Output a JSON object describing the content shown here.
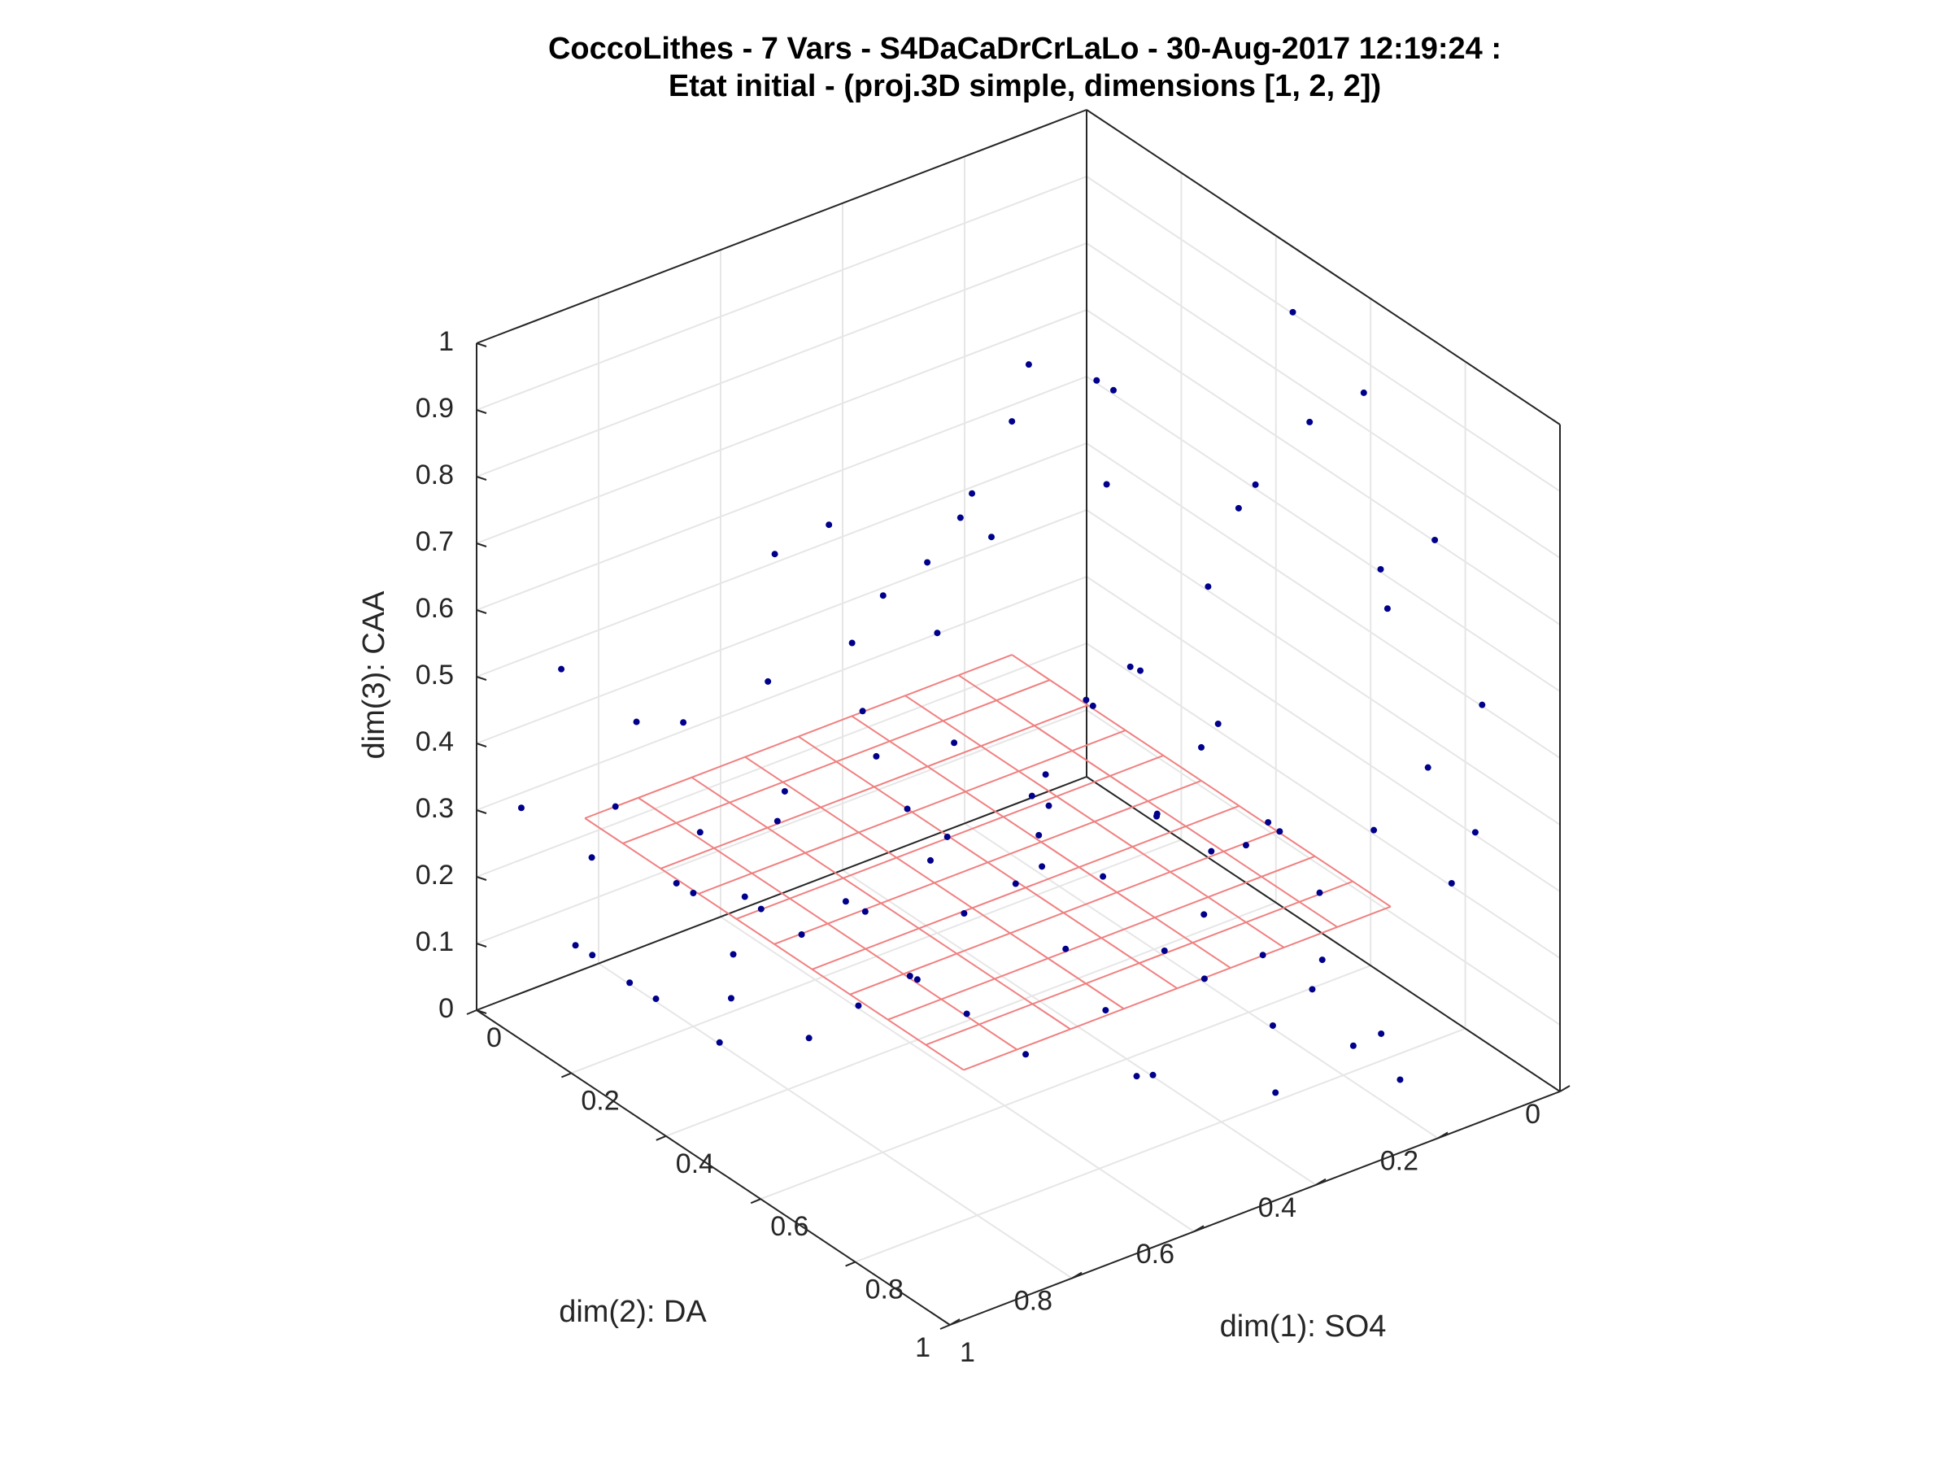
{
  "chart_data": {
    "type": "scatter",
    "title": [
      "CoccoLithes - 7 Vars - S4DaCaDrCrLaLo - 30-Aug-2017 12:19:24 :",
      "Etat initial - (proj.3D simple, dimensions [1, 2, 2])"
    ],
    "xlabel": "dim(1): SO4",
    "ylabel": "dim(2): DA",
    "zlabel": "dim(3): CAA",
    "xlim": [
      0,
      1
    ],
    "ylim": [
      0,
      1
    ],
    "zlim": [
      0,
      1
    ],
    "x_ticks": [
      "0",
      "0.2",
      "0.4",
      "0.6",
      "0.8",
      "1"
    ],
    "y_ticks": [
      "0",
      "0.2",
      "0.4",
      "0.6",
      "0.8",
      "1"
    ],
    "z_ticks": [
      "0",
      "0.1",
      "0.2",
      "0.3",
      "0.4",
      "0.5",
      "0.6",
      "0.7",
      "0.8",
      "0.9",
      "1"
    ],
    "grid": true,
    "view": "3d",
    "series": [
      {
        "kind": "points",
        "color": "#00008B",
        "points": [
          [
            0.05,
            0.55,
            0.55
          ],
          [
            0.1,
            0.5,
            0.6
          ],
          [
            0.15,
            0.45,
            0.5
          ],
          [
            0.2,
            0.4,
            0.45
          ],
          [
            0.1,
            0.6,
            0.4
          ],
          [
            0.05,
            0.7,
            0.35
          ],
          [
            0.12,
            0.3,
            0.55
          ],
          [
            0.2,
            0.5,
            0.3
          ],
          [
            0.3,
            0.45,
            0.35
          ],
          [
            0.25,
            0.35,
            0.6
          ],
          [
            0.35,
            0.5,
            0.25
          ],
          [
            0.4,
            0.4,
            0.3
          ],
          [
            0.45,
            0.55,
            0.2
          ],
          [
            0.5,
            0.3,
            0.5
          ],
          [
            0.55,
            0.4,
            0.25
          ],
          [
            0.6,
            0.5,
            0.2
          ],
          [
            0.3,
            0.6,
            0.45
          ],
          [
            0.2,
            0.65,
            0.3
          ],
          [
            0.15,
            0.75,
            0.25
          ],
          [
            0.08,
            0.8,
            0.4
          ],
          [
            0.05,
            0.9,
            0.5
          ],
          [
            0.1,
            0.85,
            0.3
          ],
          [
            0.2,
            0.8,
            0.2
          ],
          [
            0.3,
            0.7,
            0.15
          ],
          [
            0.4,
            0.6,
            0.1
          ],
          [
            0.35,
            0.2,
            0.4
          ],
          [
            0.45,
            0.15,
            0.55
          ],
          [
            0.5,
            0.2,
            0.35
          ],
          [
            0.6,
            0.25,
            0.45
          ],
          [
            0.65,
            0.3,
            0.3
          ],
          [
            0.7,
            0.35,
            0.15
          ],
          [
            0.75,
            0.2,
            0.25
          ],
          [
            0.8,
            0.15,
            0.35
          ],
          [
            0.85,
            0.1,
            0.45
          ],
          [
            0.9,
            0.1,
            0.3
          ],
          [
            0.7,
            0.05,
            0.6
          ],
          [
            0.75,
            0.1,
            0.7
          ],
          [
            0.8,
            0.05,
            0.75
          ],
          [
            0.9,
            0.05,
            0.55
          ],
          [
            0.95,
            0.1,
            0.4
          ],
          [
            0.6,
            0.1,
            0.85
          ],
          [
            0.55,
            0.15,
            0.75
          ],
          [
            0.65,
            0.05,
            0.9
          ],
          [
            0.5,
            0.05,
            0.95
          ],
          [
            0.45,
            0.1,
            0.65
          ],
          [
            0.25,
            0.15,
            0.75
          ],
          [
            0.3,
            0.2,
            0.65
          ],
          [
            0.2,
            0.25,
            0.8
          ],
          [
            0.15,
            0.1,
            0.7
          ],
          [
            0.1,
            0.2,
            0.65
          ],
          [
            0.02,
            0.4,
            0.35
          ],
          [
            0.05,
            0.3,
            0.45
          ],
          [
            0.08,
            0.25,
            0.55
          ],
          [
            0.12,
            0.6,
            0.2
          ],
          [
            0.18,
            0.7,
            0.15
          ],
          [
            0.22,
            0.75,
            0.1
          ],
          [
            0.28,
            0.8,
            0.08
          ],
          [
            0.32,
            0.85,
            0.05
          ],
          [
            0.25,
            0.9,
            0.1
          ],
          [
            0.18,
            0.95,
            0.15
          ],
          [
            0.38,
            0.75,
            0.05
          ],
          [
            0.42,
            0.7,
            0.1
          ],
          [
            0.48,
            0.65,
            0.15
          ],
          [
            0.52,
            0.6,
            0.1
          ],
          [
            0.58,
            0.55,
            0.05
          ],
          [
            0.62,
            0.45,
            0.1
          ],
          [
            0.68,
            0.4,
            0.2
          ],
          [
            0.72,
            0.45,
            0.05
          ],
          [
            0.78,
            0.3,
            0.1
          ],
          [
            0.82,
            0.25,
            0.2
          ],
          [
            0.88,
            0.2,
            0.1
          ],
          [
            0.92,
            0.2,
            0.05
          ],
          [
            0.95,
            0.3,
            0.15
          ],
          [
            0.85,
            0.35,
            0.05
          ],
          [
            0.75,
            0.5,
            0.08
          ],
          [
            0.4,
            0.3,
            0.4
          ],
          [
            0.45,
            0.35,
            0.45
          ],
          [
            0.5,
            0.45,
            0.35
          ],
          [
            0.55,
            0.5,
            0.3
          ],
          [
            0.6,
            0.35,
            0.35
          ],
          [
            0.35,
            0.35,
            0.2
          ],
          [
            0.3,
            0.3,
            0.25
          ],
          [
            0.25,
            0.45,
            0.15
          ],
          [
            0.2,
            0.55,
            0.1
          ],
          [
            0.15,
            0.65,
            0.1
          ],
          [
            0.1,
            0.75,
            0.15
          ],
          [
            0.05,
            0.85,
            0.2
          ],
          [
            0.03,
            0.95,
            0.3
          ],
          [
            0.08,
            0.9,
            0.1
          ],
          [
            0.13,
            0.85,
            0.05
          ],
          [
            0.33,
            0.55,
            0.3
          ],
          [
            0.37,
            0.65,
            0.2
          ],
          [
            0.43,
            0.45,
            0.2
          ],
          [
            0.47,
            0.25,
            0.25
          ],
          [
            0.53,
            0.15,
            0.2
          ],
          [
            0.57,
            0.25,
            0.15
          ],
          [
            0.63,
            0.2,
            0.1
          ],
          [
            0.67,
            0.15,
            0.05
          ],
          [
            0.73,
            0.25,
            0.35
          ],
          [
            0.77,
            0.3,
            0.4
          ]
        ]
      }
    ],
    "surface": {
      "kind": "mesh",
      "color": "#F08080",
      "corners": [
        [
          0.1,
          0.9,
          0.3
        ],
        [
          0.1,
          0.2,
          0.3
        ],
        [
          0.9,
          0.2,
          0.3
        ],
        [
          0.9,
          0.9,
          0.3
        ]
      ],
      "rows": 8,
      "cols": 10
    }
  }
}
